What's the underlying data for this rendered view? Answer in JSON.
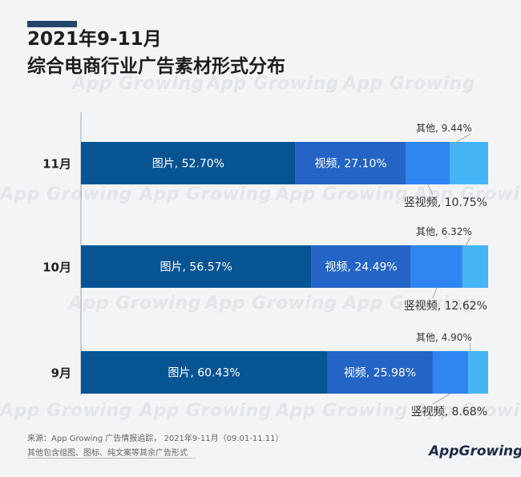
{
  "header": {
    "title_line1": "2021年9-11月",
    "title_line2": "综合电商行业广告素材形式分布"
  },
  "watermark": "App Growing",
  "footer": {
    "source": "来源：App Growing 广告情报追踪， 2021年9-11月（09.01-11.11）",
    "note": "其他包含组图、图标、纯文案等其余广告形式",
    "brand": "AppGrowing"
  },
  "colors": {
    "image": "#075493",
    "video": "#2364c4",
    "vertical_video": "#2f86f0",
    "other": "#45b4f5",
    "background": "#f2f4f6"
  },
  "chart_data": {
    "type": "bar",
    "orientation": "horizontal",
    "stacked": true,
    "percent_stacked": true,
    "categories": [
      "11月",
      "10月",
      "9月"
    ],
    "series": [
      {
        "name": "图片",
        "values": [
          52.7,
          56.57,
          60.43
        ],
        "labels": [
          "图片, 52.70%",
          "图片, 56.57%",
          "图片, 60.43%"
        ]
      },
      {
        "name": "视频",
        "values": [
          27.1,
          24.49,
          25.98
        ],
        "labels": [
          "视频, 27.10%",
          "视频, 24.49%",
          "视频, 25.98%"
        ]
      },
      {
        "name": "竖视频",
        "values": [
          10.75,
          12.62,
          8.68
        ],
        "labels": [
          "竖视频, 10.75%",
          "竖视频, 12.62%",
          "竖视频, 8.68%"
        ]
      },
      {
        "name": "其他",
        "values": [
          9.44,
          6.32,
          4.9
        ],
        "labels": [
          "其他, 9.44%",
          "其他, 6.32%",
          "其他, 4.90%"
        ]
      }
    ],
    "xlim": [
      0,
      100
    ],
    "legend": "none",
    "grid": false
  }
}
